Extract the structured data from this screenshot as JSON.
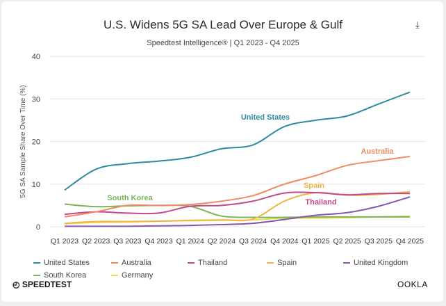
{
  "download_icon": "download-icon",
  "brand_left": "SPEEDTEST",
  "brand_right": "OOKLA",
  "chart_data": {
    "type": "line",
    "title": "U.S. Widens 5G SA Lead Over Europe & Gulf",
    "subtitle": "Speedtest Intelligence® | Q1 2023 - Q4 2025",
    "ylabel": "5G SA Sample Share Over Time (%)",
    "xlabel": "",
    "ylim": [
      0,
      40
    ],
    "yticks": [
      0,
      10,
      20,
      30,
      40
    ],
    "grid": true,
    "legend_placement": "bottom",
    "categories": [
      "Q1 2023",
      "Q2 2023",
      "Q3 2023",
      "Q4 2023",
      "Q1 2024",
      "Q2 2024",
      "Q3 2024",
      "Q4 2024",
      "Q1 2025",
      "Q2 2025",
      "Q3 2025",
      "Q4 2025"
    ],
    "series": [
      {
        "name": "United States",
        "color": "#2e8aa0",
        "values": [
          8.6,
          13.5,
          14.8,
          15.4,
          16.3,
          18.3,
          19.2,
          23.5,
          25.0,
          26.0,
          28.8,
          31.6
        ],
        "label": "United States"
      },
      {
        "name": "Australia",
        "color": "#ef8a62",
        "values": [
          2.3,
          3.5,
          5.0,
          5.0,
          5.2,
          6.0,
          7.3,
          10.0,
          12.0,
          14.4,
          15.5,
          16.5
        ],
        "label": "Australia"
      },
      {
        "name": "Thailand",
        "color": "#c4498c",
        "values": [
          2.9,
          3.5,
          3.2,
          3.2,
          4.8,
          5.0,
          6.0,
          7.9,
          8.0,
          7.5,
          7.8,
          7.8
        ],
        "label": "Thailand"
      },
      {
        "name": "Spain",
        "color": "#f2b441",
        "values": [
          0.8,
          1.2,
          1.2,
          1.3,
          1.5,
          1.6,
          1.8,
          6.0,
          8.0,
          7.4,
          7.6,
          8.2
        ],
        "label": "Spain"
      },
      {
        "name": "United Kingdom",
        "color": "#8a55b0",
        "values": [
          0.1,
          0.1,
          0.1,
          0.2,
          0.3,
          0.5,
          0.8,
          1.7,
          2.7,
          3.3,
          4.8,
          7.0
        ]
      },
      {
        "name": "South Korea",
        "color": "#7db35a",
        "values": [
          5.3,
          4.7,
          4.9,
          5.0,
          4.8,
          2.5,
          2.2,
          2.2,
          2.3,
          2.3,
          2.3,
          2.3
        ],
        "label": "South Korea"
      },
      {
        "name": "Germany",
        "color": "#e9e052",
        "values": [
          0.7,
          1.0,
          1.1,
          1.3,
          1.4,
          1.5,
          1.6,
          2.0,
          2.0,
          2.1,
          2.3,
          2.5
        ]
      }
    ]
  }
}
